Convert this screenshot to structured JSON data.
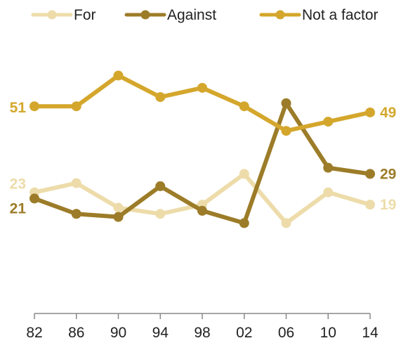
{
  "chart_data": {
    "type": "line",
    "title": "",
    "xlabel": "",
    "ylabel": "",
    "categories": [
      "82",
      "86",
      "90",
      "94",
      "98",
      "02",
      "06",
      "10",
      "14"
    ],
    "series": [
      {
        "name": "For",
        "color": "#eddcaa",
        "values": [
          23,
          26,
          18,
          16,
          19,
          29,
          13,
          23,
          19
        ],
        "start_label": "23",
        "end_label": "19"
      },
      {
        "name": "Against",
        "color": "#9c7c28",
        "values": [
          21,
          16,
          15,
          25,
          17,
          13,
          52,
          31,
          29
        ],
        "start_label": "21",
        "end_label": "29"
      },
      {
        "name": "Not a factor",
        "color": "#d4a72c",
        "values": [
          51,
          51,
          61,
          54,
          57,
          51,
          43,
          46,
          49
        ],
        "start_label": "51",
        "end_label": "49"
      }
    ],
    "ylim": [
      -10,
      73
    ],
    "grid": false,
    "legend_position": "top"
  }
}
